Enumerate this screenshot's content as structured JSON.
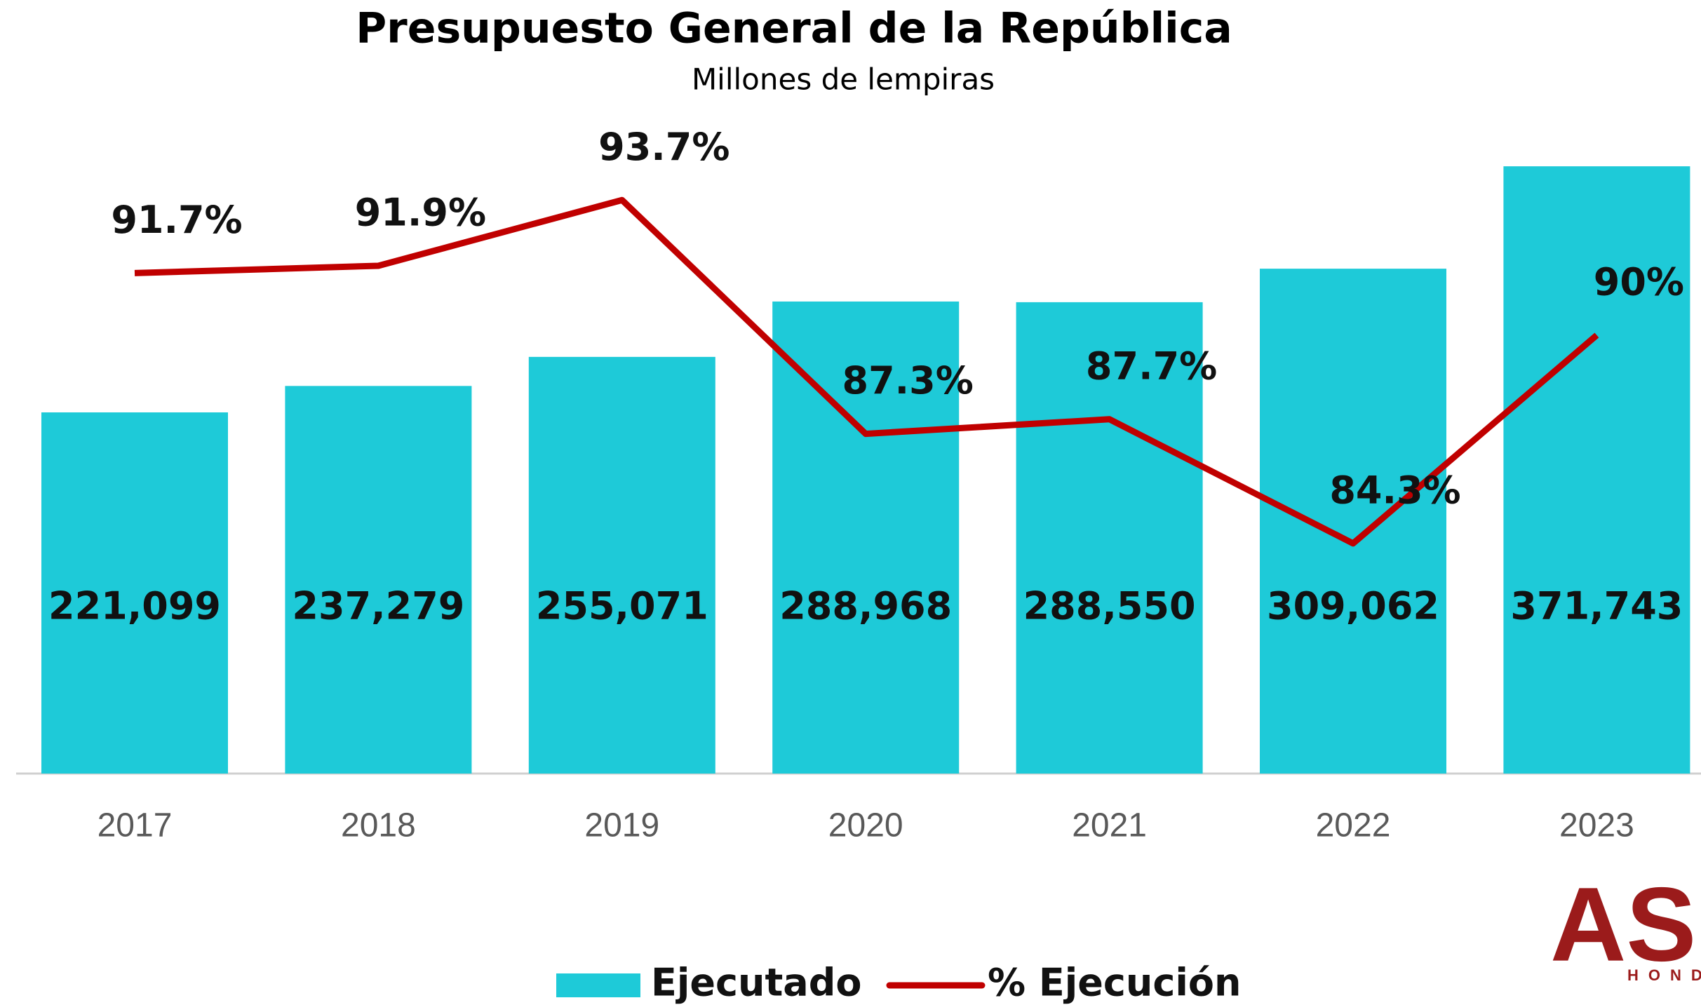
{
  "chart_data": {
    "type": "bar_line",
    "title": "Presupuesto General de la República",
    "subtitle": "Millones de lempiras",
    "categories": [
      "2017",
      "2018",
      "2019",
      "2020",
      "2021",
      "2022",
      "2023"
    ],
    "ylim": [
      0,
      407000
    ],
    "y2lim": [
      78,
      96.2
    ],
    "series": [
      {
        "name": "Ejecutado",
        "type": "bar",
        "color": "#1ecad8",
        "values": [
          221099,
          237279,
          255071,
          288968,
          288550,
          309062,
          371743
        ],
        "value_labels": [
          "221,099",
          "237,279",
          "255,071",
          "288,968",
          "288,550",
          "309,062",
          "371,743"
        ]
      },
      {
        "name": "% Ejecución",
        "type": "line",
        "axis": "y2",
        "color": "#c00000",
        "values": [
          91.7,
          91.9,
          93.7,
          87.3,
          87.7,
          84.3,
          90
        ],
        "value_labels": [
          "91.7%",
          "91.9%",
          "93.7%",
          "87.3%",
          "87.7%",
          "84.3%",
          "90%"
        ]
      }
    ],
    "legend": "bottom",
    "logo": "AS",
    "logo_subtitle": "HOND"
  }
}
